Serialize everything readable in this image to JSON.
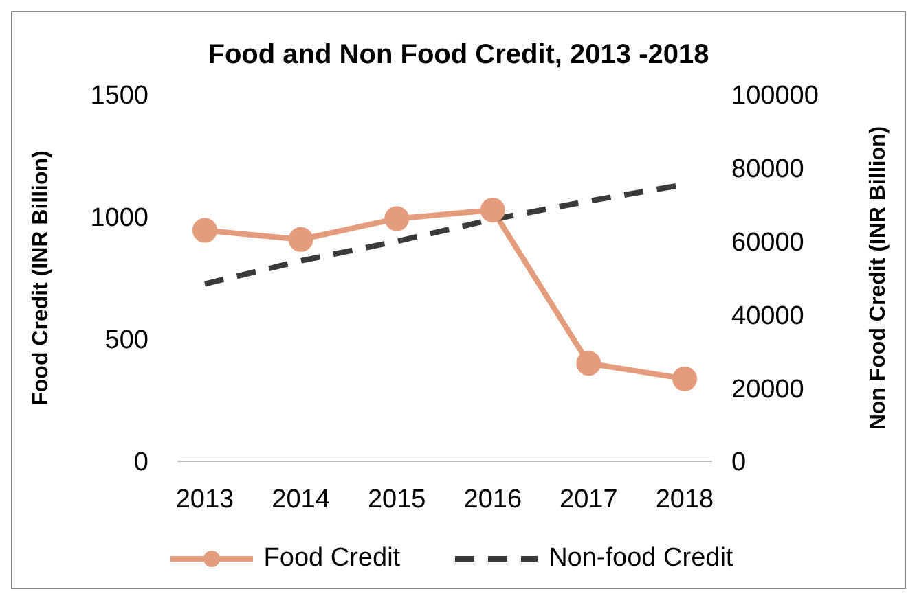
{
  "chart_data": {
    "type": "line",
    "title": "Food and Non Food Credit, 2013 -2018",
    "ylabel": "Food Credit (INR Billion)",
    "y2label": "Non Food Credit (INR Billion)",
    "categories": [
      "2013",
      "2014",
      "2015",
      "2016",
      "2017",
      "2018"
    ],
    "series": [
      {
        "name": "Food Credit",
        "color": "#e49c7c",
        "values": [
          945,
          908,
          993,
          1028,
          401,
          338
        ],
        "marker": "circle",
        "line_style": "solid"
      },
      {
        "name": "Non-food Credit",
        "color": "#3a3a3a",
        "values": [
          48400,
          54700,
          60000,
          66000,
          71000,
          75500
        ],
        "axis": "y2",
        "marker": "none",
        "line_style": "dashed"
      }
    ],
    "ylim": [
      0,
      1500
    ],
    "yticks": [
      0,
      500,
      1000,
      1500
    ],
    "y2lim": [
      0,
      100000
    ],
    "y2ticks": [
      0,
      20000,
      40000,
      60000,
      80000,
      100000
    ],
    "grid": false,
    "legend": "bottom"
  }
}
